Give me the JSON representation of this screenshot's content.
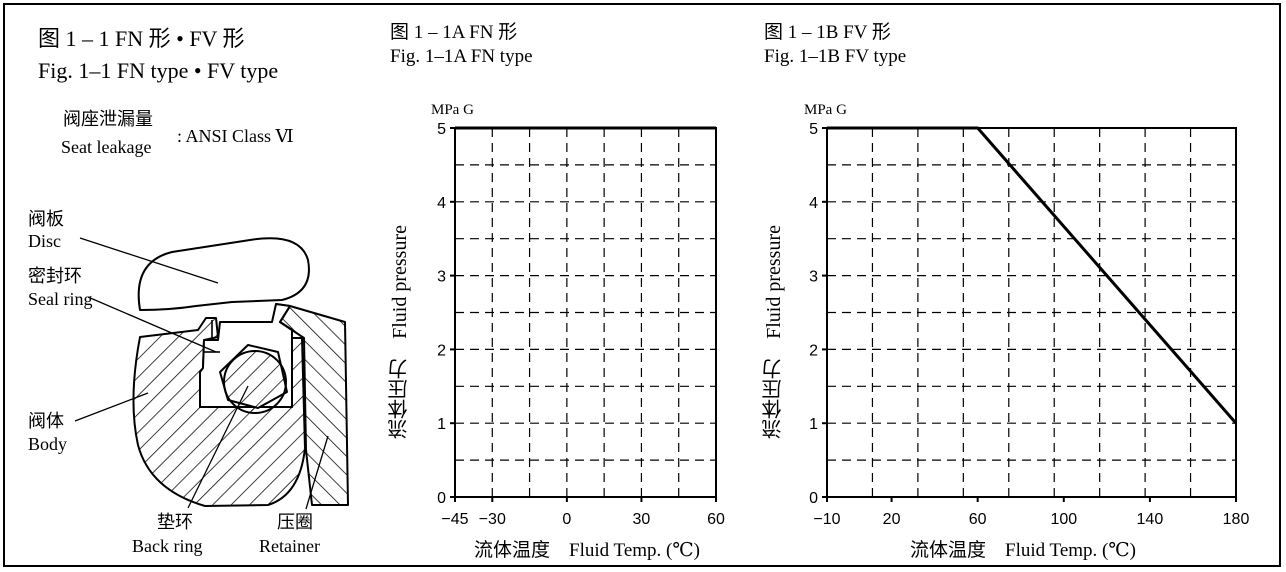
{
  "left_panel": {
    "title_cn": "图 1 – 1   FN 形 • FV 形",
    "title_en": "Fig. 1–1   FN type • FV type",
    "leakage_label_cn": "阀座泄漏量",
    "leakage_label_en": "Seat leakage",
    "leakage_value": ": ANSI Class Ⅵ",
    "parts": {
      "disc_cn": "阀板",
      "disc_en": "Disc",
      "seal_cn": "密封环",
      "seal_en": "Seal ring",
      "body_cn": "阀体",
      "body_en": "Body",
      "back_cn": "垫环",
      "back_en": "Back ring",
      "retainer_cn": "压圈",
      "retainer_en": "Retainer"
    }
  },
  "chart_data": [
    {
      "type": "line",
      "title_cn": "图 1 – 1A   FN 形",
      "title_en": "Fig. 1–1A   FN type",
      "unit": "MPa G",
      "ylabel_cn": "流体压力",
      "ylabel_en": "Fluid pressure",
      "xlabel_cn": "流体温度",
      "xlabel_en": "Fluid Temp. (℃)",
      "xlim": [
        -45,
        60
      ],
      "ylim": [
        0,
        5
      ],
      "x_ticks": [
        -45,
        -30,
        0,
        30,
        60
      ],
      "x_tick_labels": [
        "−45",
        "−30",
        "0",
        "30",
        "60"
      ],
      "y_ticks": [
        0,
        1,
        2,
        3,
        4,
        5
      ],
      "y_tick_labels": [
        "0",
        "1",
        "2",
        "3",
        "4",
        "5"
      ],
      "series": [
        {
          "x": [
            -45,
            60
          ],
          "y": [
            5,
            5
          ]
        }
      ]
    },
    {
      "type": "line",
      "title_cn": "图 1 – 1B   FV 形",
      "title_en": "Fig. 1–1B   FV type",
      "unit": "MPa G",
      "ylabel_cn": "流体压力",
      "ylabel_en": "Fluid pressure",
      "xlabel_cn": "流体温度",
      "xlabel_en": "Fluid Temp. (℃)",
      "xlim": [
        -10,
        180
      ],
      "ylim": [
        0,
        5
      ],
      "x_ticks": [
        -10,
        20,
        60,
        100,
        140,
        180
      ],
      "x_tick_labels": [
        "−10",
        "20",
        "60",
        "100",
        "140",
        "180"
      ],
      "y_ticks": [
        0,
        1,
        2,
        3,
        4,
        5
      ],
      "y_tick_labels": [
        "0",
        "1",
        "2",
        "3",
        "4",
        "5"
      ],
      "series": [
        {
          "x": [
            -10,
            60,
            180
          ],
          "y": [
            5,
            5,
            1
          ]
        }
      ]
    }
  ]
}
